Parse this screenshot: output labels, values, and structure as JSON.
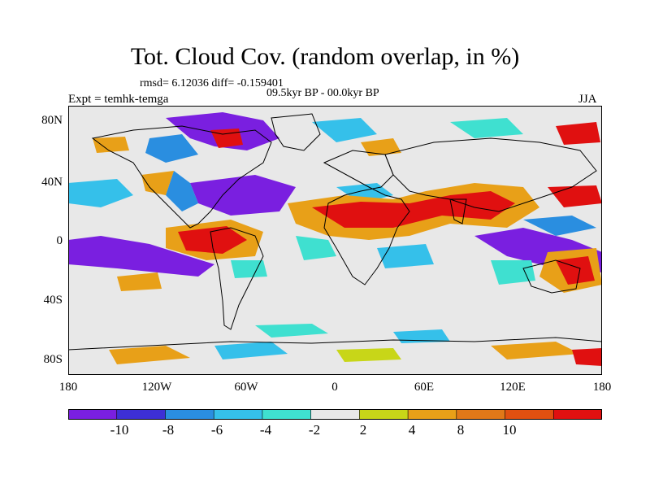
{
  "title": "Tot. Cloud Cov. (random overlap, in %)",
  "stats": "rmsd= 6.12036 diff= -0.159401",
  "period": "09.5kyr BP - 00.0kyr BP",
  "experiment": "Expt = temhk-temga",
  "season": "JJA",
  "y_ticks": [
    "80N",
    "40N",
    "0",
    "40S",
    "80S"
  ],
  "x_ticks": [
    "180",
    "120W",
    "60W",
    "0",
    "60E",
    "120E",
    "180"
  ],
  "legend": {
    "labels": [
      "-10",
      "-8",
      "-6",
      "-4",
      "-2",
      "2",
      "4",
      "8",
      "10"
    ],
    "colors": [
      "#7a1fe0",
      "#3d2fd6",
      "#2a8ee0",
      "#35c0ea",
      "#3fe0d0",
      "#e8e8e8",
      "#c8d618",
      "#e8a018",
      "#e07818",
      "#e05010",
      "#e01010"
    ]
  },
  "map_colors": {
    "background": "#e8e8e8",
    "coast": "#000000"
  }
}
